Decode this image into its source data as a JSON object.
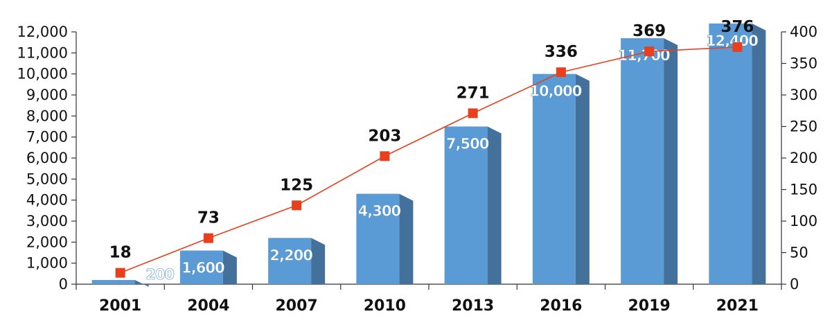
{
  "chart_data": {
    "type": "bar",
    "title": "",
    "xlabel": "",
    "ylabel": "",
    "y2label": "",
    "categories": [
      "2001",
      "2004",
      "2007",
      "2010",
      "2013",
      "2016",
      "2019",
      "2021"
    ],
    "series": [
      {
        "type": "bar",
        "axis": "left",
        "values": [
          200,
          1600,
          2200,
          4300,
          7500,
          10000,
          11700,
          12400
        ],
        "value_labels": [
          "200",
          "1,600",
          "2,200",
          "4,300",
          "7,500",
          "10,000",
          "11,700",
          "12,400"
        ],
        "color": "#5b9bd5"
      },
      {
        "type": "line",
        "axis": "right",
        "values": [
          18,
          73,
          125,
          203,
          271,
          336,
          369,
          376
        ],
        "value_labels": [
          "18",
          "73",
          "125",
          "203",
          "271",
          "336",
          "369",
          "376"
        ],
        "color": "#e8401c"
      }
    ],
    "ylim": [
      0,
      12000
    ],
    "y_ticks": [
      0,
      1000,
      2000,
      3000,
      4000,
      5000,
      6000,
      7000,
      8000,
      9000,
      10000,
      11000,
      12000
    ],
    "y_tick_labels": [
      "0",
      "1,000",
      "2,000",
      "3,000",
      "4,000",
      "5,000",
      "6,000",
      "7,000",
      "8,000",
      "9,000",
      "10,000",
      "11,000",
      "12,000"
    ],
    "y2lim": [
      0,
      400
    ],
    "y2_ticks": [
      0,
      50,
      100,
      150,
      200,
      250,
      300,
      350,
      400
    ],
    "y2_tick_labels": [
      "0",
      "50",
      "100",
      "150",
      "200",
      "250",
      "300",
      "350",
      "400"
    ],
    "grid": false,
    "legend": "none"
  }
}
